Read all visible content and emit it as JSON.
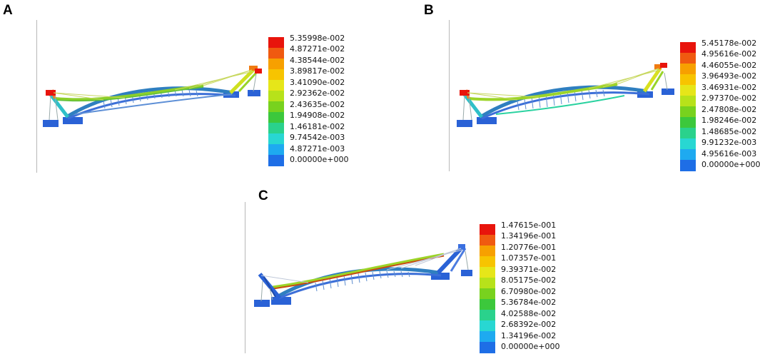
{
  "panels": [
    {
      "letter": "A",
      "legend": [
        "5.35998e-002",
        "4.87271e-002",
        "4.38544e-002",
        "3.89817e-002",
        "3.41090e-002",
        "2.92362e-002",
        "2.43635e-002",
        "1.94908e-002",
        "1.46181e-002",
        "9.74542e-003",
        "4.87271e-003",
        "0.00000e+000"
      ]
    },
    {
      "letter": "B",
      "legend": [
        "5.45178e-002",
        "4.95616e-002",
        "4.46055e-002",
        "3.96493e-002",
        "3.46931e-002",
        "2.97370e-002",
        "2.47808e-002",
        "1.98246e-002",
        "1.48685e-002",
        "9.91232e-003",
        "4.95616e-003",
        "0.00000e+000"
      ]
    },
    {
      "letter": "C",
      "legend": [
        "1.47615e-001",
        "1.34196e-001",
        "1.20776e-001",
        "1.07357e-001",
        "9.39371e-002",
        "8.05175e-002",
        "6.70980e-002",
        "5.36784e-002",
        "4.02588e-002",
        "2.68392e-002",
        "1.34196e-002",
        "0.00000e+000"
      ]
    }
  ],
  "colors": {
    "scale": [
      "#e8140c",
      "#f05a10",
      "#f7a000",
      "#f7c400",
      "#e6e619",
      "#b7e21a",
      "#78d21e",
      "#3cc83c",
      "#2ad28c",
      "#28d7d2",
      "#1eaaf0",
      "#1e6ee6"
    ],
    "structure": "#3c6fd8",
    "deck": "#2f6f8f",
    "divider": "#b8b8b8"
  }
}
